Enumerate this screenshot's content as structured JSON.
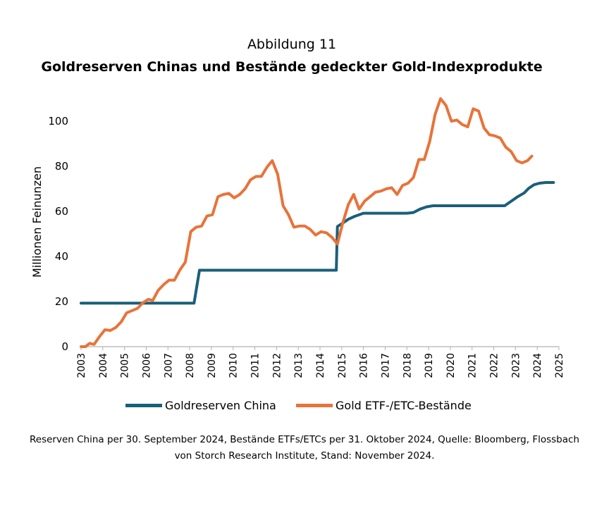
{
  "figure_label": "Abbildung 11",
  "chart_data": {
    "type": "line",
    "title": "Goldreserven Chinas und Bestände gedeckter Gold-Indexprodukte",
    "xlabel": "",
    "ylabel": "Millionen Feinunzen",
    "xlim": [
      2003,
      2025
    ],
    "ylim": [
      0,
      110
    ],
    "y_ticks": [
      0,
      20,
      40,
      60,
      80,
      100
    ],
    "x_ticks": [
      "2003",
      "2004",
      "2005",
      "2006",
      "2007",
      "2008",
      "2009",
      "2010",
      "2011",
      "2012",
      "2013",
      "2014",
      "2015",
      "2016",
      "2017",
      "2018",
      "2019",
      "2020",
      "2021",
      "2022",
      "2023",
      "2024",
      "2025"
    ],
    "grid": false,
    "legend_position": "bottom",
    "series": [
      {
        "name": "Goldreserven China",
        "color": "#1a5f7a",
        "points": [
          [
            2003.0,
            19.3
          ],
          [
            2008.2,
            19.3
          ],
          [
            2008.45,
            33.9
          ],
          [
            2011.0,
            33.9
          ],
          [
            2014.75,
            33.9
          ],
          [
            2014.8,
            53.3
          ],
          [
            2015.0,
            54.5
          ],
          [
            2015.3,
            56.5
          ],
          [
            2015.6,
            57.8
          ],
          [
            2016.0,
            59.2
          ],
          [
            2016.5,
            59.2
          ],
          [
            2017.0,
            59.2
          ],
          [
            2017.5,
            59.2
          ],
          [
            2018.0,
            59.2
          ],
          [
            2018.3,
            59.5
          ],
          [
            2018.6,
            61.0
          ],
          [
            2018.9,
            62.0
          ],
          [
            2019.2,
            62.5
          ],
          [
            2019.6,
            62.5
          ],
          [
            2020.0,
            62.5
          ],
          [
            2021.0,
            62.5
          ],
          [
            2022.0,
            62.5
          ],
          [
            2022.5,
            62.5
          ],
          [
            2022.8,
            64.5
          ],
          [
            2023.1,
            66.5
          ],
          [
            2023.4,
            68.2
          ],
          [
            2023.6,
            70.2
          ],
          [
            2023.85,
            71.8
          ],
          [
            2024.1,
            72.5
          ],
          [
            2024.4,
            72.8
          ],
          [
            2024.75,
            72.8
          ]
        ]
      },
      {
        "name": "Gold ETF-/ETC-Bestände",
        "color": "#e8733a",
        "points": [
          [
            2003.0,
            0.0
          ],
          [
            2003.2,
            0.0
          ],
          [
            2003.4,
            1.5
          ],
          [
            2003.6,
            1.0
          ],
          [
            2003.85,
            4.5
          ],
          [
            2004.1,
            7.5
          ],
          [
            2004.35,
            7.2
          ],
          [
            2004.6,
            8.5
          ],
          [
            2004.85,
            11.0
          ],
          [
            2005.1,
            15.0
          ],
          [
            2005.35,
            16.0
          ],
          [
            2005.6,
            17.0
          ],
          [
            2005.85,
            19.5
          ],
          [
            2006.1,
            21.0
          ],
          [
            2006.3,
            20.5
          ],
          [
            2006.55,
            25.0
          ],
          [
            2006.8,
            27.5
          ],
          [
            2007.05,
            29.5
          ],
          [
            2007.3,
            29.5
          ],
          [
            2007.55,
            34.0
          ],
          [
            2007.8,
            37.5
          ],
          [
            2008.05,
            51.0
          ],
          [
            2008.3,
            53.0
          ],
          [
            2008.55,
            53.5
          ],
          [
            2008.8,
            58.0
          ],
          [
            2009.05,
            58.5
          ],
          [
            2009.3,
            66.5
          ],
          [
            2009.55,
            67.5
          ],
          [
            2009.8,
            68.0
          ],
          [
            2010.05,
            66.0
          ],
          [
            2010.3,
            67.5
          ],
          [
            2010.55,
            70.0
          ],
          [
            2010.8,
            74.0
          ],
          [
            2011.05,
            75.5
          ],
          [
            2011.3,
            75.5
          ],
          [
            2011.55,
            79.5
          ],
          [
            2011.8,
            82.5
          ],
          [
            2012.05,
            76.5
          ],
          [
            2012.3,
            62.5
          ],
          [
            2012.55,
            58.5
          ],
          [
            2012.8,
            53.0
          ],
          [
            2013.05,
            53.5
          ],
          [
            2013.3,
            53.5
          ],
          [
            2013.55,
            52.0
          ],
          [
            2013.8,
            49.5
          ],
          [
            2014.05,
            51.0
          ],
          [
            2014.3,
            50.5
          ],
          [
            2014.55,
            48.5
          ],
          [
            2014.8,
            45.5
          ],
          [
            2015.05,
            55.0
          ],
          [
            2015.3,
            63.0
          ],
          [
            2015.55,
            67.5
          ],
          [
            2015.8,
            61.0
          ],
          [
            2016.05,
            64.5
          ],
          [
            2016.3,
            66.5
          ],
          [
            2016.55,
            68.5
          ],
          [
            2016.8,
            69.0
          ],
          [
            2017.05,
            70.0
          ],
          [
            2017.3,
            70.5
          ],
          [
            2017.55,
            67.5
          ],
          [
            2017.8,
            71.5
          ],
          [
            2018.05,
            72.5
          ],
          [
            2018.3,
            75.0
          ],
          [
            2018.55,
            83.0
          ],
          [
            2018.8,
            83.0
          ],
          [
            2019.05,
            91.0
          ],
          [
            2019.3,
            103.0
          ],
          [
            2019.55,
            110.0
          ],
          [
            2019.8,
            107.0
          ],
          [
            2020.05,
            100.0
          ],
          [
            2020.3,
            100.5
          ],
          [
            2020.55,
            98.5
          ],
          [
            2020.8,
            97.5
          ],
          [
            2021.05,
            105.5
          ],
          [
            2021.3,
            104.5
          ],
          [
            2021.55,
            97.0
          ],
          [
            2021.8,
            94.0
          ],
          [
            2022.05,
            93.5
          ],
          [
            2022.3,
            92.5
          ],
          [
            2022.55,
            88.5
          ],
          [
            2022.8,
            86.5
          ],
          [
            2023.05,
            82.5
          ],
          [
            2023.3,
            81.5
          ],
          [
            2023.55,
            82.5
          ],
          [
            2023.75,
            84.5
          ]
        ]
      }
    ]
  },
  "footnote": {
    "line1": "Reserven China per 30. September 2024, Bestände ETFs/ETCs per 31. Oktober 2024, Quelle: Bloomberg, Flossbach",
    "line2": "von Storch Research Institute, Stand: November 2024."
  }
}
